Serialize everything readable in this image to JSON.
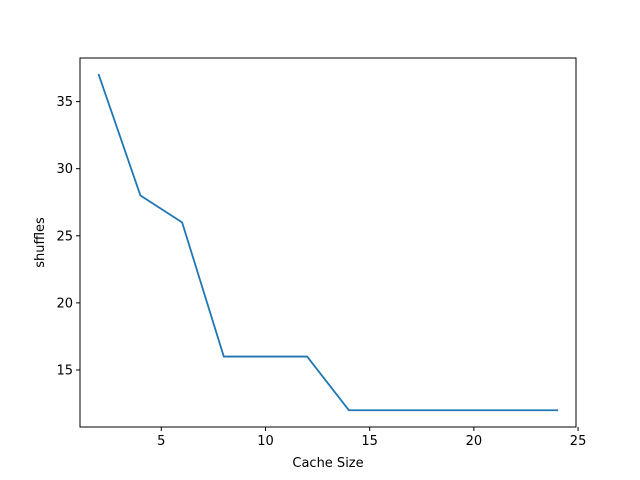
{
  "chart_data": {
    "type": "line",
    "title": "",
    "xlabel": "Cache Size",
    "ylabel": "shuffles",
    "xlim": [
      1.1,
      24.9
    ],
    "ylim": [
      10.75,
      38.25
    ],
    "xticks": [
      5,
      10,
      15,
      20,
      25
    ],
    "yticks": [
      15,
      20,
      25,
      30,
      35
    ],
    "grid": false,
    "series": [
      {
        "color": "#1f77b4",
        "x": [
          2,
          4,
          6,
          8,
          10,
          12,
          14,
          16,
          18,
          20,
          22,
          24
        ],
        "y": [
          37,
          28,
          26,
          16,
          16,
          16,
          12,
          12,
          12,
          12,
          12,
          12
        ]
      }
    ]
  }
}
